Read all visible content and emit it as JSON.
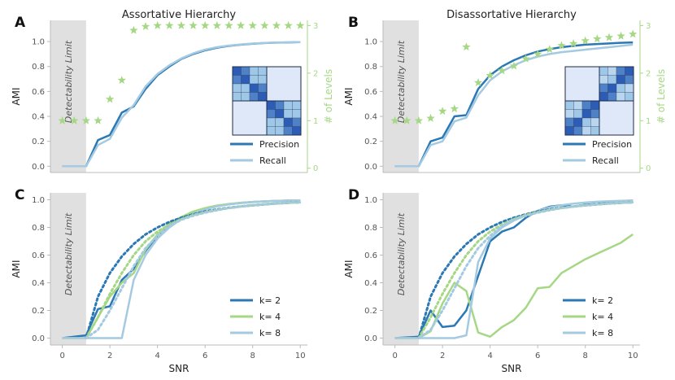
{
  "colors": {
    "dark_blue": "#2b78b4",
    "light_blue": "#a4cae2",
    "green": "#a5d785",
    "shade": "#e0e0e0",
    "spine": "#bbbbbb"
  },
  "chart_data": [
    {
      "id": "A",
      "letter": "A",
      "type": "line",
      "title": "Assortative Hierarchy",
      "xlabel": "",
      "ylabel": "AMI",
      "y2label": "# of Levels",
      "xlim": [
        -0.5,
        10.3
      ],
      "ylim": [
        -0.05,
        1.17
      ],
      "y2lim": [
        -0.09,
        3.11
      ],
      "xticks": [],
      "yticks": [
        "0.0",
        "0.2",
        "0.4",
        "0.6",
        "0.8",
        "1.0"
      ],
      "y2ticks": [
        "0",
        "1",
        "2",
        "3"
      ],
      "detectability": {
        "from": -0.5,
        "to": 1.0,
        "label": "Detectability Limit"
      },
      "series": [
        {
          "name": "Precision",
          "style": "solid",
          "color": "dark_blue",
          "x": [
            0,
            1,
            1.5,
            2,
            2.5,
            3,
            3.5,
            4,
            4.5,
            5,
            5.5,
            6,
            6.5,
            7,
            7.5,
            8,
            8.5,
            9,
            9.5,
            10
          ],
          "values": [
            0.0,
            0.0,
            0.21,
            0.25,
            0.43,
            0.48,
            0.62,
            0.73,
            0.8,
            0.86,
            0.9,
            0.93,
            0.95,
            0.965,
            0.975,
            0.983,
            0.988,
            0.991,
            0.993,
            0.995
          ]
        },
        {
          "name": "Recall",
          "style": "solid",
          "color": "light_blue",
          "x": [
            0,
            1,
            1.5,
            2,
            2.5,
            3,
            3.5,
            4,
            4.5,
            5,
            5.5,
            6,
            6.5,
            7,
            7.5,
            8,
            8.5,
            9,
            9.5,
            10
          ],
          "values": [
            0.0,
            0.0,
            0.17,
            0.22,
            0.39,
            0.49,
            0.64,
            0.74,
            0.81,
            0.865,
            0.905,
            0.935,
            0.955,
            0.968,
            0.977,
            0.984,
            0.989,
            0.992,
            0.994,
            0.996
          ]
        },
        {
          "name": "# of Levels",
          "style": "stars",
          "color": "green",
          "axis": "right",
          "x": [
            0,
            0.5,
            1,
            1.5,
            2,
            2.5,
            3,
            3.5,
            4,
            4.5,
            5,
            5.5,
            6,
            6.5,
            7,
            7.5,
            8,
            8.5,
            9,
            9.5,
            10
          ],
          "values": [
            1.0,
            1.0,
            1.0,
            1.0,
            1.45,
            1.85,
            2.9,
            2.98,
            3.0,
            3.0,
            3.0,
            3.0,
            3.0,
            3.0,
            3.0,
            3.0,
            3.0,
            3.0,
            3.0,
            3.0,
            3.0
          ]
        }
      ],
      "legend": {
        "entries": [
          "Precision",
          "Recall"
        ],
        "placement": "bottom-right"
      },
      "inset": "assortative"
    },
    {
      "id": "B",
      "letter": "B",
      "type": "line",
      "title": "Disassortative Hierarchy",
      "xlabel": "",
      "ylabel": "AMI",
      "y2label": "# of Levels",
      "xlim": [
        -0.5,
        10.3
      ],
      "ylim": [
        -0.05,
        1.17
      ],
      "y2lim": [
        -0.09,
        3.11
      ],
      "xticks": [],
      "yticks": [
        "0.0",
        "0.2",
        "0.4",
        "0.6",
        "0.8",
        "1.0"
      ],
      "y2ticks": [
        "0",
        "1",
        "2",
        "3"
      ],
      "detectability": {
        "from": -0.5,
        "to": 1.0,
        "label": "Detectability Limit"
      },
      "series": [
        {
          "name": "Precision",
          "style": "solid",
          "color": "dark_blue",
          "x": [
            0,
            1,
            1.5,
            2,
            2.5,
            3,
            3.5,
            4,
            4.5,
            5,
            5.5,
            6,
            6.5,
            7,
            7.5,
            8,
            8.5,
            9,
            9.5,
            10
          ],
          "values": [
            0.0,
            0.0,
            0.2,
            0.23,
            0.4,
            0.41,
            0.62,
            0.73,
            0.8,
            0.85,
            0.89,
            0.92,
            0.94,
            0.955,
            0.965,
            0.975,
            0.98,
            0.985,
            0.99,
            0.993
          ]
        },
        {
          "name": "Recall",
          "style": "solid",
          "color": "light_blue",
          "x": [
            0,
            1,
            1.5,
            2,
            2.5,
            3,
            3.5,
            4,
            4.5,
            5,
            5.5,
            6,
            6.5,
            7,
            7.5,
            8,
            8.5,
            9,
            9.5,
            10
          ],
          "values": [
            0.0,
            0.0,
            0.17,
            0.2,
            0.36,
            0.39,
            0.57,
            0.69,
            0.76,
            0.81,
            0.85,
            0.88,
            0.9,
            0.915,
            0.925,
            0.935,
            0.945,
            0.955,
            0.965,
            0.975
          ]
        },
        {
          "name": "# of Levels",
          "style": "stars",
          "color": "green",
          "axis": "right",
          "x": [
            0,
            0.5,
            1,
            1.5,
            2,
            2.5,
            3,
            3.5,
            4,
            4.5,
            5,
            5.5,
            6,
            6.5,
            7,
            7.5,
            8,
            8.5,
            9,
            9.5,
            10
          ],
          "values": [
            1.0,
            1.0,
            1.0,
            1.05,
            1.2,
            1.25,
            2.55,
            1.8,
            1.95,
            2.05,
            2.15,
            2.3,
            2.4,
            2.5,
            2.58,
            2.62,
            2.68,
            2.72,
            2.75,
            2.78,
            2.82
          ]
        }
      ],
      "legend": {
        "entries": [
          "Precision",
          "Recall"
        ],
        "placement": "bottom-right"
      },
      "inset": "disassortative"
    },
    {
      "id": "C",
      "letter": "C",
      "type": "line",
      "title": "",
      "xlabel": "SNR",
      "ylabel": "AMI",
      "xlim": [
        -0.5,
        10.3
      ],
      "ylim": [
        -0.05,
        1.05
      ],
      "xticks": [
        "0",
        "2",
        "4",
        "6",
        "8",
        "10"
      ],
      "yticks": [
        "0.0",
        "0.2",
        "0.4",
        "0.6",
        "0.8",
        "1.0"
      ],
      "detectability": {
        "from": -0.5,
        "to": 1.0,
        "label": "Detectability Limit"
      },
      "series": [
        {
          "name": "k=  2",
          "style": "solid",
          "color": "dark_blue",
          "x": [
            0,
            1,
            1.5,
            2,
            2.5,
            3,
            3.5,
            4,
            4.5,
            5,
            5.5,
            6,
            6.5,
            7,
            7.5,
            8,
            8.5,
            9,
            9.5,
            10
          ],
          "values": [
            0.0,
            0.02,
            0.21,
            0.23,
            0.42,
            0.5,
            0.63,
            0.74,
            0.82,
            0.87,
            0.91,
            0.935,
            0.955,
            0.967,
            0.977,
            0.984,
            0.988,
            0.992,
            0.994,
            0.996
          ]
        },
        {
          "name": "k=  4",
          "style": "solid",
          "color": "green",
          "x": [
            0,
            1,
            1.5,
            2,
            2.5,
            3,
            3.5,
            4,
            4.5,
            5,
            5.5,
            6,
            6.5,
            7,
            7.5,
            8,
            8.5,
            9,
            9.5,
            10
          ],
          "values": [
            0.0,
            0.0,
            0.15,
            0.3,
            0.4,
            0.47,
            0.64,
            0.75,
            0.83,
            0.875,
            0.915,
            0.94,
            0.958,
            0.97,
            0.979,
            0.985,
            0.989,
            0.992,
            0.994,
            0.996
          ]
        },
        {
          "name": "k=  8",
          "style": "solid",
          "color": "light_blue",
          "x": [
            0,
            1,
            1.5,
            2,
            2.5,
            3,
            3.5,
            4,
            4.5,
            5,
            5.5,
            6,
            6.5,
            7,
            7.5,
            8,
            8.5,
            9,
            9.5,
            10
          ],
          "values": [
            0.0,
            0.0,
            0.0,
            0.0,
            0.0,
            0.42,
            0.6,
            0.72,
            0.8,
            0.86,
            0.9,
            0.93,
            0.952,
            0.966,
            0.976,
            0.983,
            0.988,
            0.991,
            0.994,
            0.996
          ]
        },
        {
          "name": "theory k=2",
          "style": "dotted",
          "color": "dark_blue",
          "x": [
            1,
            1.5,
            2,
            2.5,
            3,
            3.5,
            4,
            4.5,
            5,
            5.5,
            6,
            6.5,
            7,
            7.5,
            8,
            8.5,
            9,
            9.5,
            10
          ],
          "values": [
            0.0,
            0.3,
            0.47,
            0.59,
            0.68,
            0.75,
            0.8,
            0.84,
            0.87,
            0.895,
            0.915,
            0.93,
            0.942,
            0.952,
            0.96,
            0.967,
            0.973,
            0.978,
            0.982
          ]
        },
        {
          "name": "theory k=4",
          "style": "dotted",
          "color": "green",
          "x": [
            1,
            1.5,
            2,
            2.5,
            3,
            3.5,
            4,
            4.5,
            5,
            5.5,
            6,
            6.5,
            7,
            7.5,
            8,
            8.5,
            9,
            9.5,
            10
          ],
          "values": [
            0.0,
            0.15,
            0.32,
            0.47,
            0.6,
            0.7,
            0.77,
            0.82,
            0.86,
            0.89,
            0.91,
            0.927,
            0.94,
            0.951,
            0.96,
            0.967,
            0.973,
            0.978,
            0.982
          ]
        },
        {
          "name": "theory k=8",
          "style": "dotted",
          "color": "light_blue",
          "x": [
            1,
            1.5,
            2,
            2.5,
            3,
            3.5,
            4,
            4.5,
            5,
            5.5,
            6,
            6.5,
            7,
            7.5,
            8,
            8.5,
            9,
            9.5,
            10
          ],
          "values": [
            0.0,
            0.06,
            0.2,
            0.36,
            0.52,
            0.65,
            0.74,
            0.81,
            0.855,
            0.885,
            0.907,
            0.925,
            0.94,
            0.951,
            0.96,
            0.967,
            0.973,
            0.978,
            0.982
          ]
        }
      ],
      "legend": {
        "entries": [
          "k=  2",
          "k=  4",
          "k=  8"
        ],
        "placement": "bottom-right"
      }
    },
    {
      "id": "D",
      "letter": "D",
      "type": "line",
      "title": "",
      "xlabel": "SNR",
      "ylabel": "AMI",
      "xlim": [
        -0.5,
        10.3
      ],
      "ylim": [
        -0.05,
        1.05
      ],
      "xticks": [
        "0",
        "2",
        "4",
        "6",
        "8",
        "10"
      ],
      "yticks": [
        "0.0",
        "0.2",
        "0.4",
        "0.6",
        "0.8",
        "1.0"
      ],
      "detectability": {
        "from": -0.5,
        "to": 1.0,
        "label": "Detectability Limit"
      },
      "series": [
        {
          "name": "k=  2",
          "style": "solid",
          "color": "dark_blue",
          "x": [
            0,
            1,
            1.5,
            2,
            2.5,
            3,
            3.5,
            4,
            4.5,
            5,
            5.5,
            6,
            6.5,
            7,
            7.5,
            8,
            8.5,
            9,
            9.5,
            10
          ],
          "values": [
            0.0,
            0.01,
            0.2,
            0.08,
            0.09,
            0.2,
            0.45,
            0.7,
            0.77,
            0.8,
            0.87,
            0.92,
            0.95,
            0.96,
            0.95,
            0.965,
            0.97,
            0.985,
            0.99,
            0.995
          ]
        },
        {
          "name": "k=  4",
          "style": "solid",
          "color": "green",
          "x": [
            0,
            1,
            1.5,
            2,
            2.5,
            3,
            3.5,
            4,
            4.5,
            5,
            5.5,
            6,
            6.5,
            7,
            7.5,
            8,
            8.5,
            9,
            9.5,
            10
          ],
          "values": [
            0.0,
            0.0,
            0.05,
            0.25,
            0.4,
            0.34,
            0.04,
            0.01,
            0.08,
            0.13,
            0.22,
            0.36,
            0.37,
            0.47,
            0.52,
            0.57,
            0.61,
            0.65,
            0.69,
            0.75
          ]
        },
        {
          "name": "k=  8",
          "style": "solid",
          "color": "light_blue",
          "x": [
            0,
            1,
            1.5,
            2,
            2.5,
            3,
            3.5,
            4,
            4.5,
            5,
            5.5,
            6,
            6.5,
            7,
            7.5,
            8,
            8.5,
            9,
            9.5,
            10
          ],
          "values": [
            0.0,
            0.0,
            0.0,
            0.0,
            0.0,
            0.02,
            0.55,
            0.72,
            0.8,
            0.85,
            0.89,
            0.92,
            0.945,
            0.96,
            0.972,
            0.98,
            0.986,
            0.99,
            0.993,
            0.996
          ]
        },
        {
          "name": "theory k=2",
          "style": "dotted",
          "color": "dark_blue",
          "x": [
            1,
            1.5,
            2,
            2.5,
            3,
            3.5,
            4,
            4.5,
            5,
            5.5,
            6,
            6.5,
            7,
            7.5,
            8,
            8.5,
            9,
            9.5,
            10
          ],
          "values": [
            0.0,
            0.3,
            0.47,
            0.59,
            0.68,
            0.75,
            0.8,
            0.84,
            0.87,
            0.895,
            0.915,
            0.93,
            0.942,
            0.952,
            0.96,
            0.967,
            0.973,
            0.978,
            0.982
          ]
        },
        {
          "name": "theory k=4",
          "style": "dotted",
          "color": "green",
          "x": [
            1,
            1.5,
            2,
            2.5,
            3,
            3.5,
            4,
            4.5,
            5,
            5.5,
            6,
            6.5,
            7,
            7.5,
            8,
            8.5,
            9,
            9.5,
            10
          ],
          "values": [
            0.0,
            0.15,
            0.32,
            0.47,
            0.6,
            0.7,
            0.77,
            0.82,
            0.86,
            0.89,
            0.91,
            0.927,
            0.94,
            0.951,
            0.96,
            0.967,
            0.973,
            0.978,
            0.982
          ]
        },
        {
          "name": "theory k=8",
          "style": "dotted",
          "color": "light_blue",
          "x": [
            1,
            1.5,
            2,
            2.5,
            3,
            3.5,
            4,
            4.5,
            5,
            5.5,
            6,
            6.5,
            7,
            7.5,
            8,
            8.5,
            9,
            9.5,
            10
          ],
          "values": [
            0.0,
            0.06,
            0.2,
            0.36,
            0.52,
            0.65,
            0.74,
            0.81,
            0.855,
            0.885,
            0.907,
            0.925,
            0.94,
            0.951,
            0.96,
            0.967,
            0.973,
            0.978,
            0.982
          ]
        }
      ],
      "legend": {
        "entries": [
          "k=  2",
          "k=  4",
          "k=  8"
        ],
        "placement": "bottom-right"
      }
    }
  ]
}
